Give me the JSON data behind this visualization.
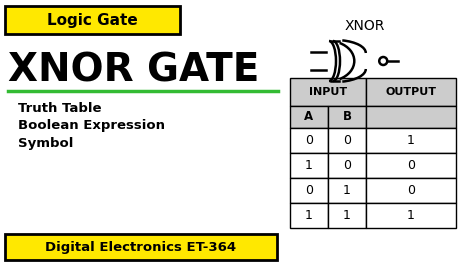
{
  "bg_color": "#ffffff",
  "yellow_color": "#FFE800",
  "green_line_color": "#33BB33",
  "black_color": "#000000",
  "gray_header": "#CCCCCC",
  "title_badge_text": "Logic Gate",
  "bottom_badge_text": "Digital Electronics ET-364",
  "main_title": "XNOR GATE",
  "sub_items": [
    "Truth Table",
    "Boolean Expression",
    "Symbol"
  ],
  "gate_label": "XNOR",
  "table_header_input": "INPUT",
  "table_header_output": "OUTPUT",
  "col_a": "A",
  "col_b": "B",
  "truth_table": [
    [
      0,
      0,
      1
    ],
    [
      1,
      0,
      0
    ],
    [
      0,
      1,
      0
    ],
    [
      1,
      1,
      1
    ]
  ],
  "fig_w": 4.74,
  "fig_h": 2.66,
  "dpi": 100
}
